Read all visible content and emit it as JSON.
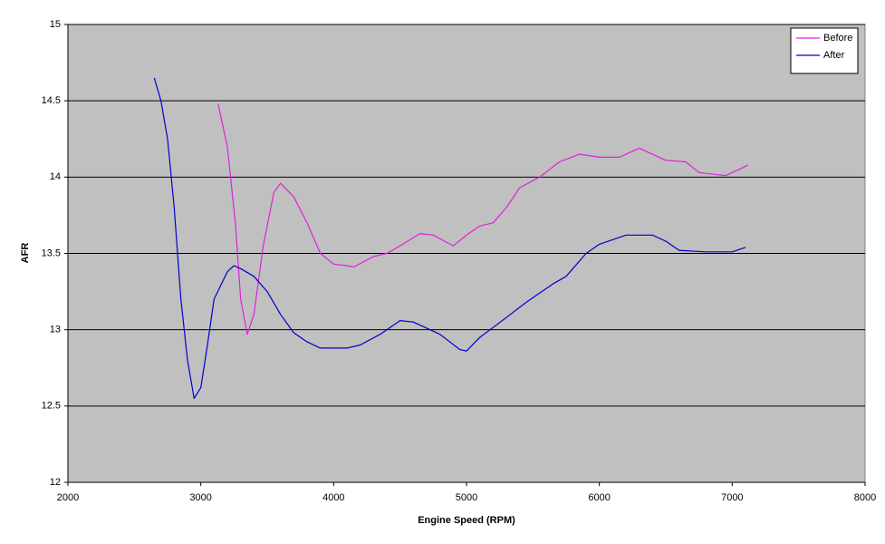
{
  "chart_data": {
    "type": "line",
    "x_label": "Engine Speed (RPM)",
    "y_label": "AFR",
    "xlim": [
      2000,
      8000
    ],
    "xticks": [
      2000,
      3000,
      4000,
      5000,
      6000,
      7000,
      8000
    ],
    "ylim": [
      12,
      15
    ],
    "yticks": [
      12,
      12.5,
      13,
      13.5,
      14,
      14.5,
      15
    ],
    "grid": true,
    "legend": "top-right",
    "background": "#c0c0c0",
    "series": [
      {
        "name": "Before",
        "color": "#e020e0",
        "x": [
          3130,
          3200,
          3260,
          3300,
          3350,
          3400,
          3470,
          3550,
          3600,
          3700,
          3800,
          3900,
          4000,
          4100,
          4150,
          4300,
          4400,
          4500,
          4650,
          4750,
          4900,
          5000,
          5100,
          5200,
          5300,
          5400,
          5550,
          5700,
          5850,
          6000,
          6150,
          6300,
          6500,
          6650,
          6750,
          6950,
          7050,
          7120
        ],
        "values": [
          14.48,
          14.2,
          13.7,
          13.2,
          12.97,
          13.1,
          13.55,
          13.9,
          13.96,
          13.87,
          13.7,
          13.5,
          13.43,
          13.42,
          13.41,
          13.48,
          13.5,
          13.55,
          13.63,
          13.62,
          13.55,
          13.62,
          13.68,
          13.7,
          13.8,
          13.93,
          14.0,
          14.1,
          14.15,
          14.13,
          14.13,
          14.19,
          14.11,
          14.1,
          14.03,
          14.01,
          14.05,
          14.08
        ]
      },
      {
        "name": "After",
        "color": "#0000cc",
        "x": [
          2650,
          2700,
          2750,
          2800,
          2850,
          2900,
          2950,
          3000,
          3050,
          3100,
          3200,
          3250,
          3300,
          3400,
          3500,
          3600,
          3700,
          3800,
          3900,
          4100,
          4200,
          4350,
          4500,
          4600,
          4800,
          4950,
          5000,
          5100,
          5300,
          5450,
          5650,
          5750,
          5900,
          6000,
          6200,
          6400,
          6500,
          6600,
          6800,
          7000,
          7100
        ],
        "values": [
          14.65,
          14.5,
          14.25,
          13.8,
          13.2,
          12.8,
          12.55,
          12.62,
          12.9,
          13.2,
          13.38,
          13.42,
          13.4,
          13.35,
          13.25,
          13.1,
          12.98,
          12.92,
          12.88,
          12.88,
          12.9,
          12.97,
          13.06,
          13.05,
          12.97,
          12.87,
          12.86,
          12.95,
          13.08,
          13.18,
          13.3,
          13.35,
          13.5,
          13.56,
          13.62,
          13.62,
          13.58,
          13.52,
          13.51,
          13.51,
          13.54
        ]
      }
    ]
  }
}
